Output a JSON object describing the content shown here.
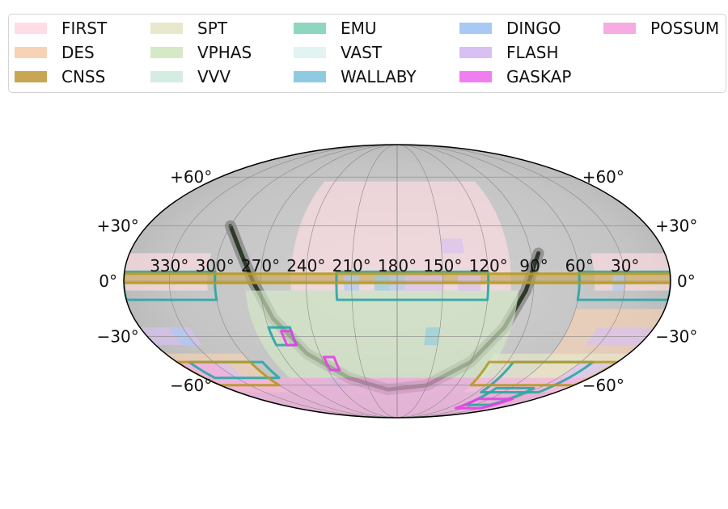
{
  "chart_data": {
    "type": "sky-map",
    "projection": "mollweide",
    "legend": [
      {
        "name": "FIRST",
        "color": "#ffdde4"
      },
      {
        "name": "DES",
        "color": "#f8d2b5"
      },
      {
        "name": "CNSS",
        "color": "#c8a654"
      },
      {
        "name": "SPT",
        "color": "#e8e8cc"
      },
      {
        "name": "VPHAS",
        "color": "#d5e9c6"
      },
      {
        "name": "VVV",
        "color": "#d5ece2"
      },
      {
        "name": "EMU",
        "color": "#8fd6c0"
      },
      {
        "name": "VAST",
        "color": "#e2f4f2"
      },
      {
        "name": "WALLABY",
        "color": "#8fcbe0"
      },
      {
        "name": "DINGO",
        "color": "#a9c9f5"
      },
      {
        "name": "FLASH",
        "color": "#d8c0f5"
      },
      {
        "name": "GASKAP",
        "color": "#ef7ef0"
      },
      {
        "name": "POSSUM",
        "color": "#f6ace0"
      }
    ],
    "ra_tick_labels": [
      "330$^\\circ$",
      "300$^\\circ$",
      "270$^\\circ$",
      "240$^\\circ$",
      "210$^\\circ$",
      "180$^\\circ$",
      "150$^\\circ$",
      "120$^\\circ$",
      "90$^\\circ$",
      "60$^\\circ$",
      "30$^\\circ$"
    ],
    "ra_ticks": [
      330,
      300,
      270,
      240,
      210,
      180,
      150,
      120,
      90,
      60,
      30
    ],
    "dec_ticks": [
      60,
      30,
      0,
      -30,
      -60
    ],
    "dec_tick_labels": [
      "+60$^\\circ$",
      "+30$^\\circ$",
      "0$^\\circ$",
      "$-$30$^\\circ$",
      "$-$60$^\\circ$"
    ],
    "dec_label_text": [
      "+60°",
      "+30°",
      "0°",
      "−30°",
      "−60°"
    ],
    "ra_label_text": [
      "330°",
      "300°",
      "270°",
      "240°",
      "210°",
      "180°",
      "150°",
      "120°",
      "90°",
      "60°",
      "30°"
    ],
    "grid": true,
    "legend_placement": "top",
    "regions": [
      {
        "survey": "FIRST",
        "ra": [
          105,
          250
        ],
        "dec": [
          -5,
          57
        ]
      },
      {
        "survey": "FIRST",
        "ra": [
          305,
          360
        ],
        "dec": [
          -5,
          15
        ]
      },
      {
        "survey": "FIRST",
        "ra": [
          0,
          50
        ],
        "dec": [
          -5,
          15
        ]
      },
      {
        "survey": "DES",
        "ra": [
          0,
          60
        ],
        "dec": [
          -65,
          -15
        ]
      },
      {
        "survey": "DES",
        "ra": [
          300,
          360
        ],
        "dec": [
          -65,
          -40
        ]
      },
      {
        "survey": "CNSS",
        "ra": [
          0,
          360
        ],
        "dec": [
          -1,
          4
        ]
      },
      {
        "survey": "SPT",
        "ra": [
          0,
          105
        ],
        "dec": [
          -65,
          -40
        ]
      },
      {
        "survey": "VPHAS",
        "ra": [
          100,
          280
        ],
        "dec": [
          -55,
          -5
        ]
      },
      {
        "survey": "FLASH",
        "ra": [
          0,
          40
        ],
        "dec": [
          -35,
          -25
        ]
      },
      {
        "survey": "FLASH",
        "ra": [
          325,
          360
        ],
        "dec": [
          -35,
          -25
        ]
      },
      {
        "survey": "FLASH",
        "ra": [
          0,
          30
        ],
        "dec": [
          -60,
          -45
        ]
      },
      {
        "survey": "FLASH",
        "ra": [
          320,
          360
        ],
        "dec": [
          -60,
          -45
        ]
      },
      {
        "survey": "FLASH",
        "ra": [
          135,
          150
        ],
        "dec": [
          15,
          23
        ]
      },
      {
        "survey": "DINGO",
        "ra": [
          205,
          215
        ],
        "dec": [
          -5,
          3
        ]
      },
      {
        "survey": "DINGO",
        "ra": [
          175,
          185
        ],
        "dec": [
          -5,
          3
        ]
      },
      {
        "survey": "DINGO",
        "ra": [
          30,
          38
        ],
        "dec": [
          -5,
          3
        ]
      },
      {
        "survey": "DINGO",
        "ra": [
          330,
          340
        ],
        "dec": [
          -35,
          -25
        ]
      },
      {
        "survey": "FLASH",
        "ra": [
          160,
          175
        ],
        "dec": [
          -5,
          3
        ]
      },
      {
        "survey": "FLASH",
        "ra": [
          125,
          140
        ],
        "dec": [
          -5,
          3
        ]
      },
      {
        "survey": "FLASH",
        "ra": [
          150,
          160
        ],
        "dec": [
          -5,
          3
        ]
      },
      {
        "survey": "WALLABY",
        "ra": [
          150,
          160
        ],
        "dec": [
          -35,
          -25
        ]
      },
      {
        "survey": "WALLABY",
        "ra": [
          185,
          195
        ],
        "dec": [
          -5,
          3
        ]
      },
      {
        "survey": "WALLABY",
        "ra": [
          235,
          245
        ],
        "dec": [
          -62,
          -55
        ]
      },
      {
        "survey": "POSSUM",
        "ra": [
          0,
          360
        ],
        "dec": [
          -90,
          -55
        ]
      },
      {
        "survey": "POSSUM",
        "ra": [
          330,
          360
        ],
        "dec": [
          -55,
          -45
        ]
      }
    ],
    "outlines": [
      {
        "survey": "EMU",
        "ra": [
          120,
          220
        ],
        "dec": [
          -10,
          5
        ]
      },
      {
        "survey": "EMU",
        "ra": [
          300,
          360
        ],
        "dec": [
          -10,
          5
        ]
      },
      {
        "survey": "EMU",
        "ra": [
          0,
          60
        ],
        "dec": [
          -10,
          5
        ]
      },
      {
        "survey": "EMU",
        "ra": [
          290,
          350
        ],
        "dec": [
          -55,
          -45
        ]
      },
      {
        "survey": "EMU",
        "ra": [
          20,
          85
        ],
        "dec": [
          -65,
          -45
        ]
      },
      {
        "survey": "EMU",
        "ra": [
          255,
          270
        ],
        "dec": [
          -35,
          -25
        ]
      },
      {
        "survey": "EMU",
        "ra": [
          35,
          75
        ],
        "dec": [
          -75,
          -62
        ]
      },
      {
        "survey": "CNSS",
        "ra": [
          0,
          105
        ],
        "dec": [
          -60,
          -45
        ]
      },
      {
        "survey": "CNSS",
        "ra": [
          300,
          360
        ],
        "dec": [
          -60,
          -45
        ]
      },
      {
        "survey": "CNSS",
        "ra": [
          0,
          360
        ],
        "dec": [
          -1,
          4
        ]
      },
      {
        "survey": "GASKAP",
        "ra": [
          255,
          262
        ],
        "dec": [
          -35,
          -27
        ]
      },
      {
        "survey": "GASKAP",
        "ra": [
          230,
          238
        ],
        "dec": [
          -50,
          -42
        ]
      },
      {
        "survey": "GASKAP",
        "ra": [
          30,
          75
        ],
        "dec": [
          -78,
          -70
        ]
      }
    ]
  }
}
